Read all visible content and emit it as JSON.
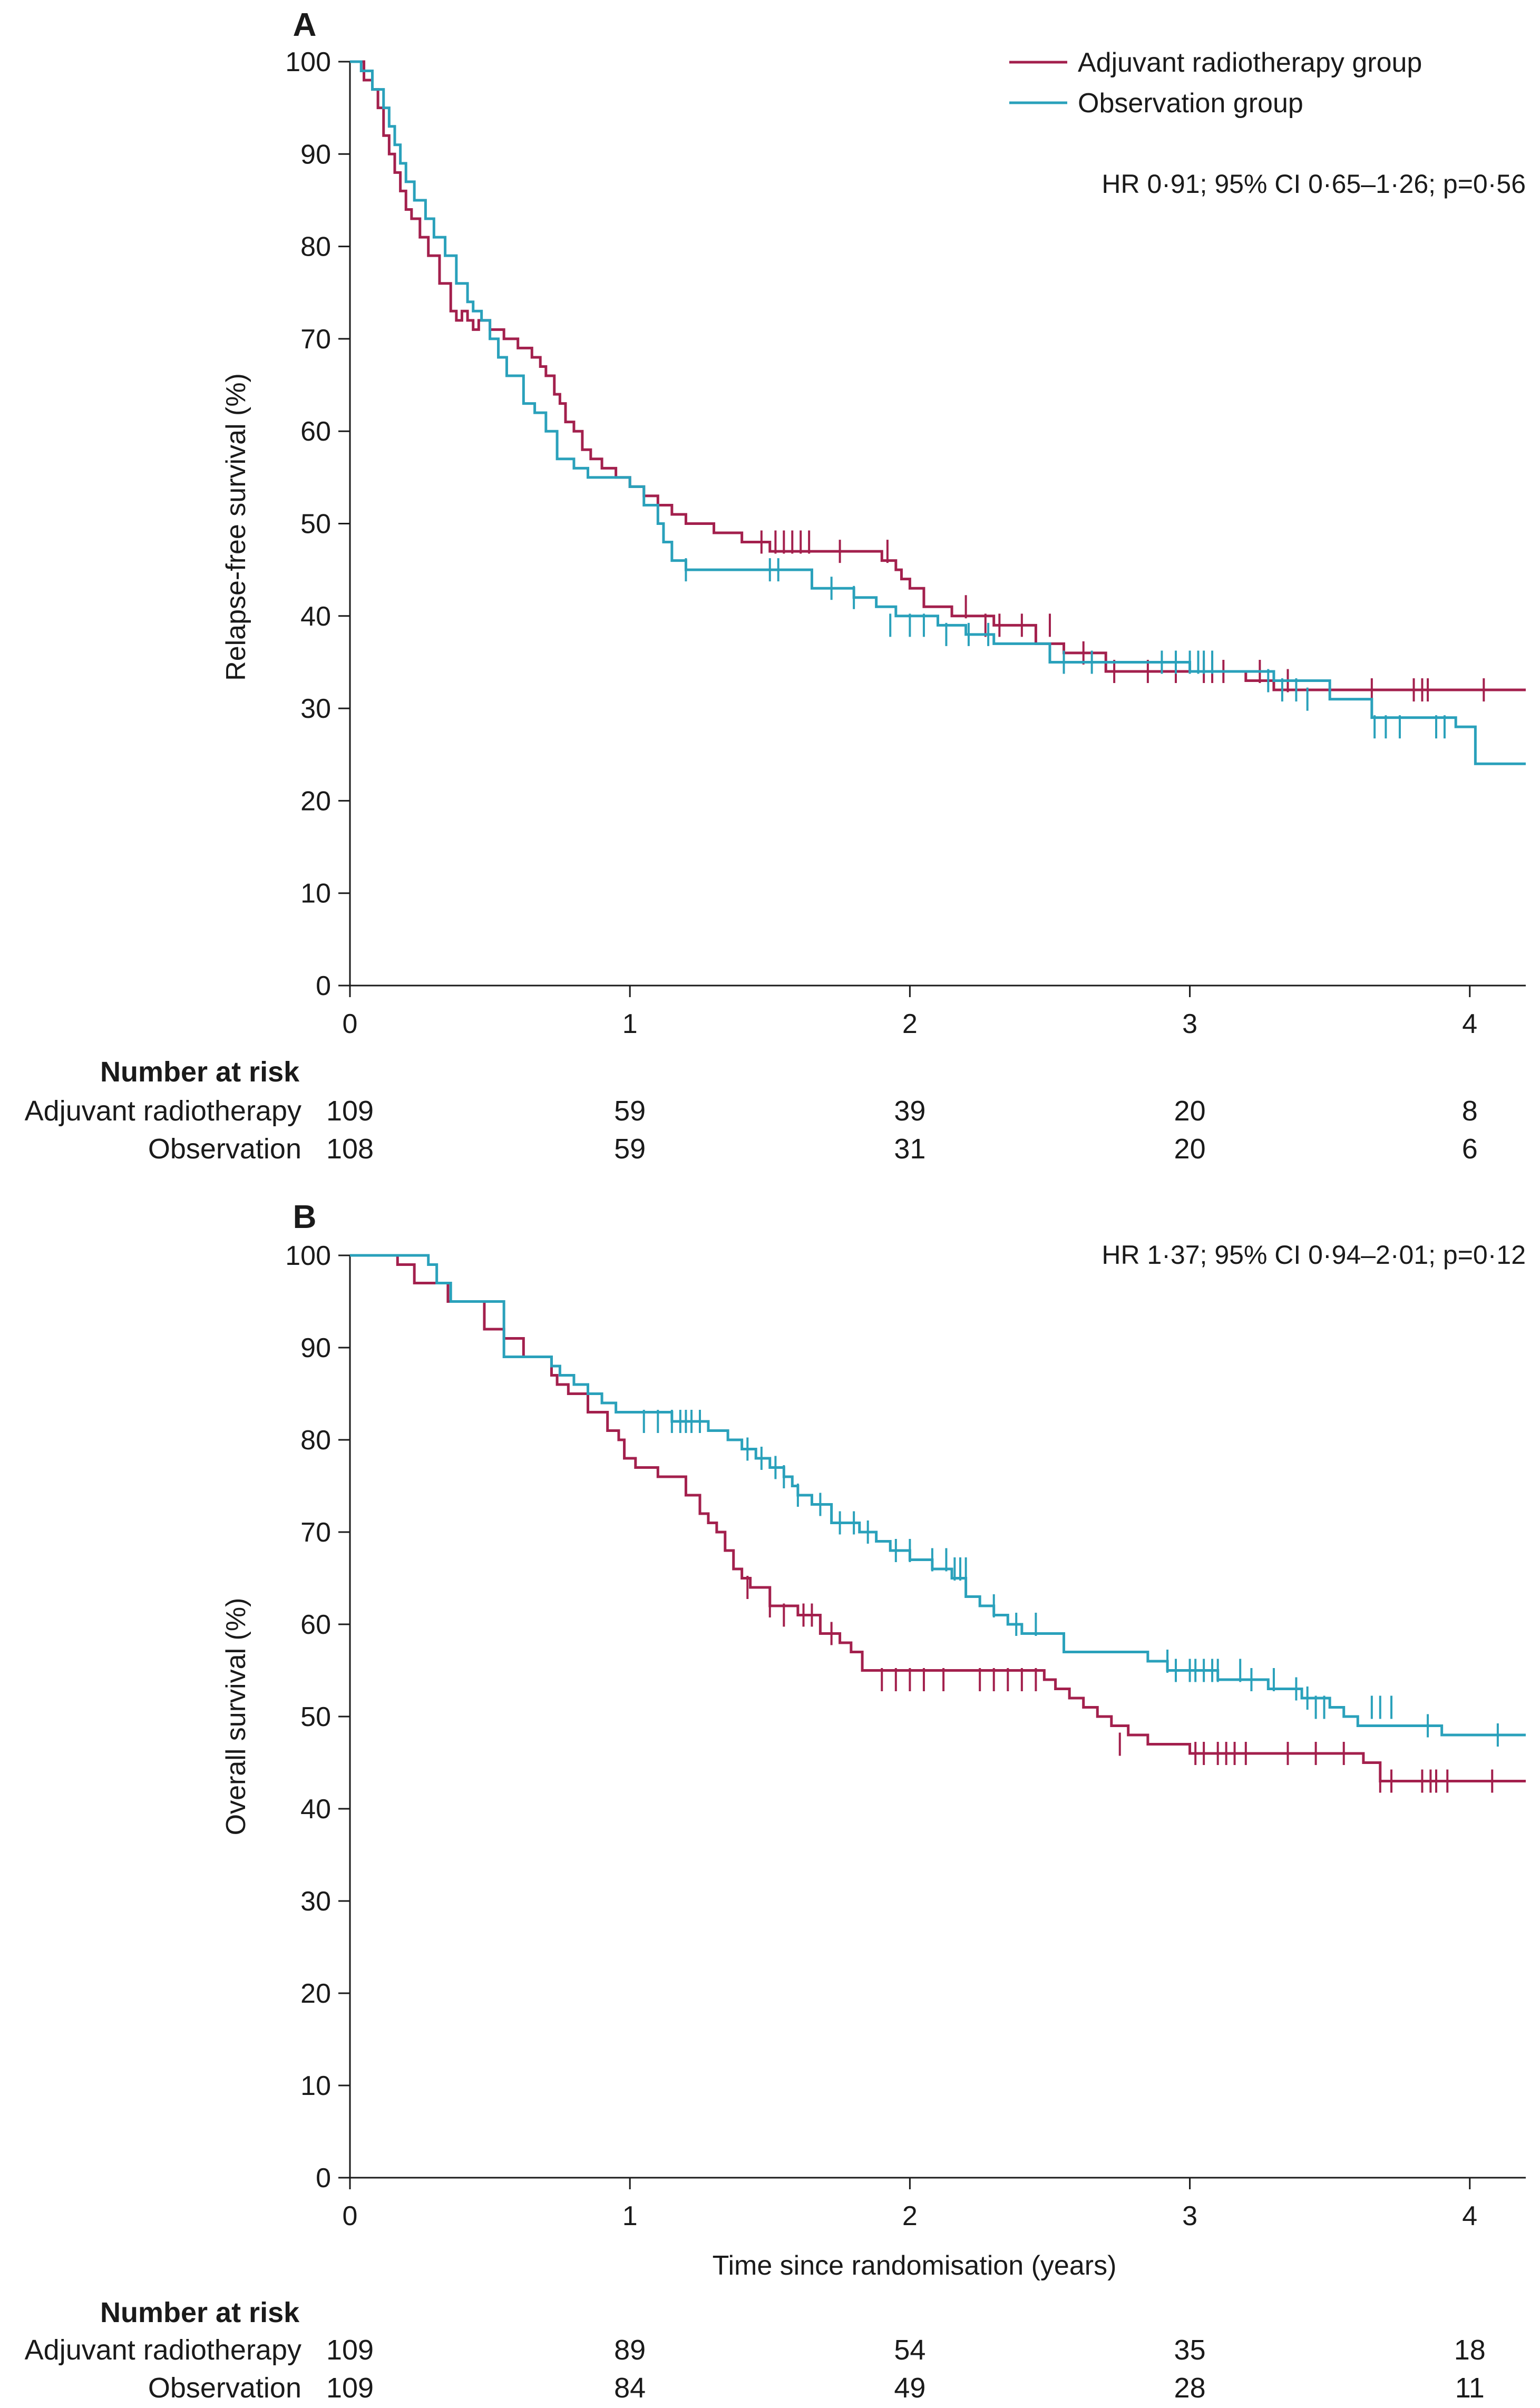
{
  "colors": {
    "radiotherapy": "#a3204d",
    "observation": "#2aa1bb",
    "axis": "#1a1a1a"
  },
  "legend": {
    "radiotherapy": "Adjuvant radiotherapy group",
    "observation": "Observation group"
  },
  "risk_table": {
    "heading": "Number at risk",
    "row_radiotherapy": "Adjuvant radiotherapy",
    "row_observation": "Observation"
  },
  "chart_data": [
    {
      "type": "line",
      "step": true,
      "panel": "A",
      "title": "",
      "ylabel": "Relapse-free survival (%)",
      "xlabel": "",
      "xlim": [
        0,
        4.2
      ],
      "ylim": [
        0,
        100
      ],
      "xticks": [
        "0",
        "1",
        "2",
        "3",
        "4"
      ],
      "yticks": [
        "0",
        "10",
        "20",
        "30",
        "40",
        "50",
        "60",
        "70",
        "80",
        "90",
        "100"
      ],
      "annotation": "HR 0·91; 95% CI 0·65–1·26; p=0·56",
      "show_legend": true,
      "series": [
        {
          "name": "Adjuvant radiotherapy group",
          "key": "radiotherapy",
          "x": [
            0,
            0.05,
            0.08,
            0.1,
            0.12,
            0.14,
            0.16,
            0.18,
            0.2,
            0.22,
            0.25,
            0.28,
            0.32,
            0.36,
            0.38,
            0.4,
            0.42,
            0.44,
            0.46,
            0.5,
            0.55,
            0.6,
            0.65,
            0.68,
            0.7,
            0.73,
            0.75,
            0.77,
            0.8,
            0.83,
            0.86,
            0.9,
            0.95,
            1.0,
            1.05,
            1.1,
            1.15,
            1.2,
            1.3,
            1.4,
            1.5,
            1.68,
            1.75,
            1.9,
            1.95,
            1.97,
            2.0,
            2.05,
            2.15,
            2.3,
            2.45,
            2.55,
            2.7,
            3.2,
            3.3,
            4.2
          ],
          "y": [
            100,
            98,
            97,
            95,
            92,
            90,
            88,
            86,
            84,
            83,
            81,
            79,
            76,
            73,
            72,
            73,
            72,
            71,
            72,
            71,
            70,
            69,
            68,
            67,
            66,
            64,
            63,
            61,
            60,
            58,
            57,
            56,
            55,
            54,
            53,
            52,
            51,
            50,
            49,
            48,
            47,
            47,
            47,
            46,
            45,
            44,
            43,
            41,
            40,
            39,
            37,
            36,
            34,
            33,
            32,
            32
          ],
          "censor_x": [
            1.47,
            1.52,
            1.55,
            1.58,
            1.61,
            1.64,
            1.75,
            1.92,
            2.2,
            2.27,
            2.32,
            2.4,
            2.5,
            2.62,
            2.73,
            2.85,
            2.95,
            3.05,
            3.08,
            3.12,
            3.25,
            3.35,
            3.65,
            3.8,
            3.83,
            3.85,
            4.05
          ],
          "censor_y": [
            48,
            48,
            48,
            48,
            48,
            48,
            47,
            47,
            41,
            39,
            39,
            39,
            39,
            36,
            34,
            34,
            34,
            34,
            34,
            34,
            34,
            33,
            32,
            32,
            32,
            32,
            32
          ]
        },
        {
          "name": "Observation group",
          "key": "observation",
          "x": [
            0,
            0.04,
            0.08,
            0.12,
            0.14,
            0.16,
            0.18,
            0.2,
            0.23,
            0.27,
            0.3,
            0.34,
            0.38,
            0.42,
            0.44,
            0.47,
            0.5,
            0.53,
            0.56,
            0.62,
            0.66,
            0.7,
            0.74,
            0.8,
            0.85,
            0.9,
            1.0,
            1.05,
            1.1,
            1.12,
            1.15,
            1.2,
            1.55,
            1.65,
            1.75,
            1.8,
            1.88,
            1.95,
            2.1,
            2.2,
            2.3,
            2.5,
            3.0,
            3.3,
            3.5,
            3.65,
            3.95,
            4.02,
            4.2
          ],
          "y": [
            100,
            99,
            97,
            95,
            93,
            91,
            89,
            87,
            85,
            83,
            81,
            79,
            76,
            74,
            73,
            72,
            70,
            68,
            66,
            63,
            62,
            60,
            57,
            56,
            55,
            55,
            54,
            52,
            50,
            48,
            46,
            45,
            45,
            43,
            43,
            42,
            41,
            40,
            39,
            38,
            37,
            35,
            34,
            33,
            31,
            29,
            28,
            24,
            24
          ],
          "censor_x": [
            1.2,
            1.5,
            1.53,
            1.72,
            1.8,
            1.93,
            2.0,
            2.05,
            2.13,
            2.21,
            2.28,
            2.55,
            2.65,
            2.9,
            2.95,
            3.0,
            3.03,
            3.05,
            3.08,
            3.28,
            3.33,
            3.38,
            3.42,
            3.66,
            3.7,
            3.75,
            3.88,
            3.91
          ],
          "censor_y": [
            45,
            45,
            45,
            43,
            42,
            39,
            39,
            39,
            38,
            38,
            38,
            35,
            35,
            35,
            35,
            35,
            35,
            35,
            35,
            33,
            32,
            32,
            31,
            28,
            28,
            28,
            28,
            28
          ]
        }
      ],
      "risk": {
        "times": [
          0,
          1,
          2,
          3,
          4
        ],
        "radiotherapy": [
          "109",
          "59",
          "39",
          "20",
          "8"
        ],
        "observation": [
          "108",
          "59",
          "31",
          "20",
          "6"
        ]
      }
    },
    {
      "type": "line",
      "step": true,
      "panel": "B",
      "title": "",
      "ylabel": "Overall survival (%)",
      "xlabel": "Time since randomisation (years)",
      "xlim": [
        0,
        4.2
      ],
      "ylim": [
        0,
        100
      ],
      "xticks": [
        "0",
        "1",
        "2",
        "3",
        "4"
      ],
      "yticks": [
        "0",
        "10",
        "20",
        "30",
        "40",
        "50",
        "60",
        "70",
        "80",
        "90",
        "100"
      ],
      "annotation": "HR 1·37; 95% CI 0·94–2·01; p=0·12",
      "show_legend": false,
      "series": [
        {
          "name": "Adjuvant radiotherapy group",
          "key": "radiotherapy",
          "x": [
            0,
            0.17,
            0.23,
            0.35,
            0.48,
            0.55,
            0.62,
            0.72,
            0.74,
            0.78,
            0.85,
            0.92,
            0.96,
            0.98,
            1.02,
            1.1,
            1.2,
            1.25,
            1.28,
            1.31,
            1.34,
            1.37,
            1.4,
            1.43,
            1.5,
            1.6,
            1.68,
            1.75,
            1.79,
            1.83,
            2.48,
            2.52,
            2.57,
            2.62,
            2.67,
            2.72,
            2.78,
            2.85,
            3.0,
            3.62,
            3.68,
            4.2
          ],
          "y": [
            100,
            99,
            97,
            95,
            92,
            91,
            89,
            87,
            86,
            85,
            83,
            81,
            80,
            78,
            77,
            76,
            74,
            72,
            71,
            70,
            68,
            66,
            65,
            64,
            62,
            61,
            59,
            58,
            57,
            55,
            54,
            53,
            52,
            51,
            50,
            49,
            48,
            47,
            46,
            45,
            43,
            43
          ],
          "censor_x": [
            1.42,
            1.5,
            1.55,
            1.62,
            1.65,
            1.72,
            1.9,
            1.95,
            2.0,
            2.05,
            2.12,
            2.25,
            2.3,
            2.35,
            2.4,
            2.45,
            2.75,
            3.02,
            3.05,
            3.1,
            3.13,
            3.16,
            3.2,
            3.35,
            3.45,
            3.55,
            3.68,
            3.72,
            3.83,
            3.86,
            3.88,
            3.92,
            4.08
          ],
          "censor_y": [
            64,
            62,
            61,
            61,
            61,
            59,
            54,
            54,
            54,
            54,
            54,
            54,
            54,
            54,
            54,
            54,
            47,
            46,
            46,
            46,
            46,
            46,
            46,
            46,
            46,
            46,
            43,
            43,
            43,
            43,
            43,
            43,
            43
          ]
        },
        {
          "name": "Observation group",
          "key": "observation",
          "x": [
            0,
            0.28,
            0.31,
            0.36,
            0.55,
            0.72,
            0.75,
            0.8,
            0.85,
            0.9,
            0.95,
            1.15,
            1.28,
            1.35,
            1.4,
            1.45,
            1.5,
            1.55,
            1.58,
            1.6,
            1.65,
            1.72,
            1.82,
            1.88,
            1.93,
            2.0,
            2.08,
            2.15,
            2.2,
            2.25,
            2.3,
            2.35,
            2.4,
            2.55,
            2.85,
            2.92,
            3.1,
            3.28,
            3.4,
            3.5,
            3.55,
            3.6,
            3.65,
            3.9,
            3.95,
            4.2
          ],
          "y": [
            100,
            99,
            97,
            95,
            89,
            88,
            87,
            86,
            85,
            84,
            83,
            82,
            81,
            80,
            79,
            78,
            77,
            76,
            75,
            74,
            73,
            71,
            70,
            69,
            68,
            67,
            66,
            65,
            63,
            62,
            61,
            60,
            59,
            57,
            56,
            55,
            54,
            53,
            52,
            51,
            50,
            49,
            49,
            48,
            48,
            48
          ],
          "censor_x": [
            1.05,
            1.1,
            1.15,
            1.18,
            1.2,
            1.22,
            1.25,
            1.42,
            1.47,
            1.52,
            1.55,
            1.6,
            1.68,
            1.75,
            1.8,
            1.85,
            1.95,
            2.0,
            2.08,
            2.13,
            2.16,
            2.18,
            2.2,
            2.3,
            2.38,
            2.45,
            2.92,
            2.95,
            3.0,
            3.02,
            3.05,
            3.08,
            3.1,
            3.18,
            3.22,
            3.3,
            3.38,
            3.42,
            3.45,
            3.48,
            3.65,
            3.68,
            3.72,
            3.85,
            4.1
          ],
          "censor_y": [
            82,
            82,
            82,
            82,
            82,
            82,
            82,
            79,
            78,
            77,
            76,
            74,
            73,
            71,
            71,
            70,
            68,
            68,
            67,
            67,
            66,
            66,
            66,
            62,
            60,
            60,
            56,
            55,
            55,
            55,
            55,
            55,
            55,
            55,
            54,
            54,
            53,
            52,
            51,
            51,
            51,
            51,
            51,
            49,
            48
          ]
        }
      ],
      "risk": {
        "times": [
          0,
          1,
          2,
          3,
          4
        ],
        "radiotherapy": [
          "109",
          "89",
          "54",
          "35",
          "18"
        ],
        "observation": [
          "109",
          "84",
          "49",
          "28",
          "11"
        ]
      }
    }
  ]
}
